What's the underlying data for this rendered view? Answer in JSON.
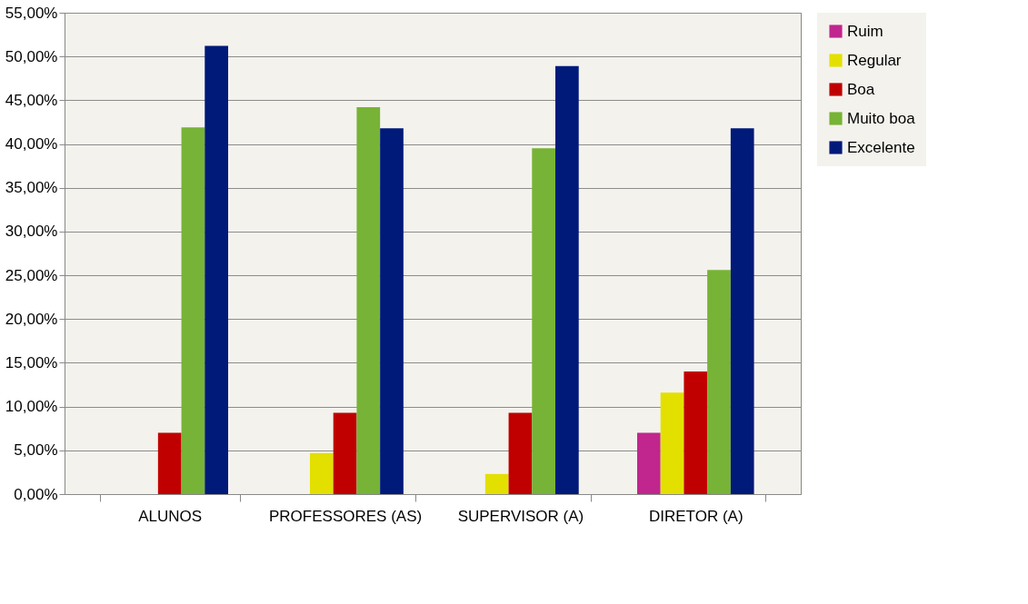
{
  "chart_data": {
    "type": "bar",
    "categories": [
      "ALUNOS",
      "PROFESSORES (AS)",
      "SUPERVISOR (A)",
      "DIRETOR (A)"
    ],
    "series": [
      {
        "name": "Ruim",
        "color": "#c0268e",
        "values": [
          0,
          0,
          0,
          7.0
        ]
      },
      {
        "name": "Regular",
        "color": "#e3e000",
        "values": [
          0,
          4.7,
          2.3,
          11.6
        ]
      },
      {
        "name": "Boa",
        "color": "#c00000",
        "values": [
          7.0,
          9.3,
          9.3,
          14.0
        ]
      },
      {
        "name": "Muito boa",
        "color": "#77b336",
        "values": [
          41.9,
          44.2,
          39.5,
          25.6
        ]
      },
      {
        "name": "Excelente",
        "color": "#001a7a",
        "values": [
          51.2,
          41.8,
          48.9,
          41.8
        ]
      }
    ],
    "ylim": [
      0,
      55
    ],
    "yticks": [
      {
        "value": 0,
        "label": "0,00%"
      },
      {
        "value": 5,
        "label": "5,00%"
      },
      {
        "value": 10,
        "label": "10,00%"
      },
      {
        "value": 15,
        "label": "15,00%"
      },
      {
        "value": 20,
        "label": "20,00%"
      },
      {
        "value": 25,
        "label": "25,00%"
      },
      {
        "value": 30,
        "label": "30,00%"
      },
      {
        "value": 35,
        "label": "35,00%"
      },
      {
        "value": 40,
        "label": "40,00%"
      },
      {
        "value": 45,
        "label": "45,00%"
      },
      {
        "value": 50,
        "label": "50,00%"
      },
      {
        "value": 55,
        "label": "55,00%"
      }
    ],
    "grid": "y",
    "legend": "right"
  }
}
